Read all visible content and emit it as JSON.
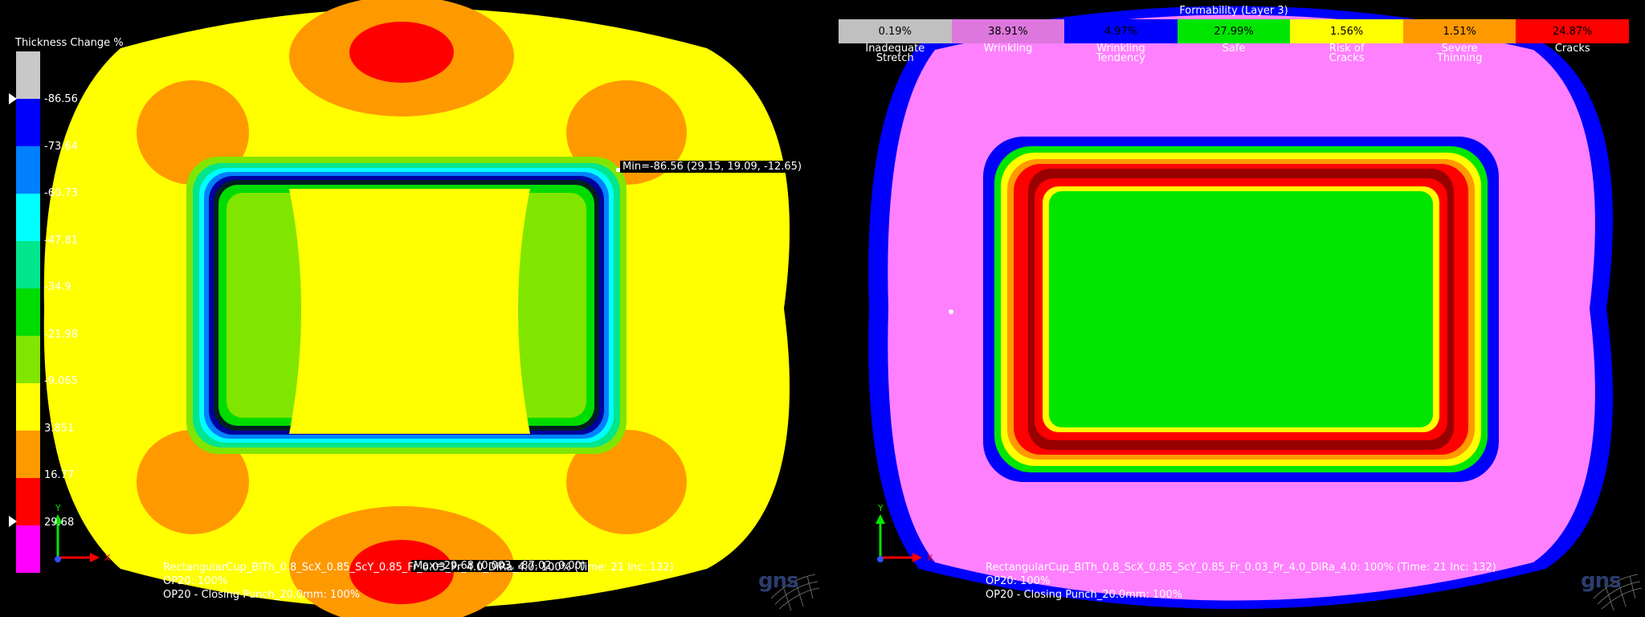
{
  "left_view": {
    "legend_title": "Thickness Change %",
    "scale_colors": [
      "#c8c8c8",
      "#0000ff",
      "#0080ff",
      "#00ffff",
      "#00e68c",
      "#00dc00",
      "#80e600",
      "#ffff00",
      "#ff9900",
      "#ff0000",
      "#ff00ff"
    ],
    "ticks": [
      "-86.56",
      "-73.64",
      "-60.73",
      "-47.81",
      "-34.9",
      "-21.98",
      "-9.065",
      "3.851",
      "16.77",
      "29.68"
    ],
    "min_label": "Min=-86.56 (29.15, 19.09, -12.65)",
    "max_label": "Max=29.68 (0.003, -87.02, 0.00)",
    "info_lines": [
      "RectangularCup_BlTh_0.8_ScX_0.85_ScY_0.85_Fr_0.03_Pr_4.0_DiRa_4.0: 100% (Time: 21 Inc: 132)",
      "OP20: 100%",
      "OP20 - Closing Punch_20.0mm: 100%"
    ],
    "axis_y": "Y",
    "axis_x": "X",
    "logo": "gns"
  },
  "right_view": {
    "legend_title": "Formability (Layer 3)",
    "categories": [
      {
        "value": "0.19%",
        "label1": "Inadequate",
        "label2": "Stretch",
        "color": "#c0c0c0"
      },
      {
        "value": "38.91%",
        "label1": "Wrinkling",
        "label2": "",
        "color": "#dd77dd"
      },
      {
        "value": "4.97%",
        "label1": "Wrinkling",
        "label2": "Tendency",
        "color": "#0000ff"
      },
      {
        "value": "27.99%",
        "label1": "Safe",
        "label2": "",
        "color": "#00e600"
      },
      {
        "value": "1.56%",
        "label1": "Risk of",
        "label2": "Cracks",
        "color": "#ffff00"
      },
      {
        "value": "1.51%",
        "label1": "Severe",
        "label2": "Thinning",
        "color": "#ff9900"
      },
      {
        "value": "24.87%",
        "label1": "Cracks",
        "label2": "",
        "color": "#ff0000"
      }
    ],
    "info_lines": [
      "RectangularCup_BlTh_0.8_ScX_0.85_ScY_0.85_Fr_0.03_Pr_4.0_DiRa_4.0: 100% (Time: 21 Inc: 132)",
      "OP20: 100%",
      "OP20 - Closing Punch_20.0mm: 100%"
    ],
    "axis_y": "Y",
    "axis_x": "X",
    "logo": "gns"
  }
}
